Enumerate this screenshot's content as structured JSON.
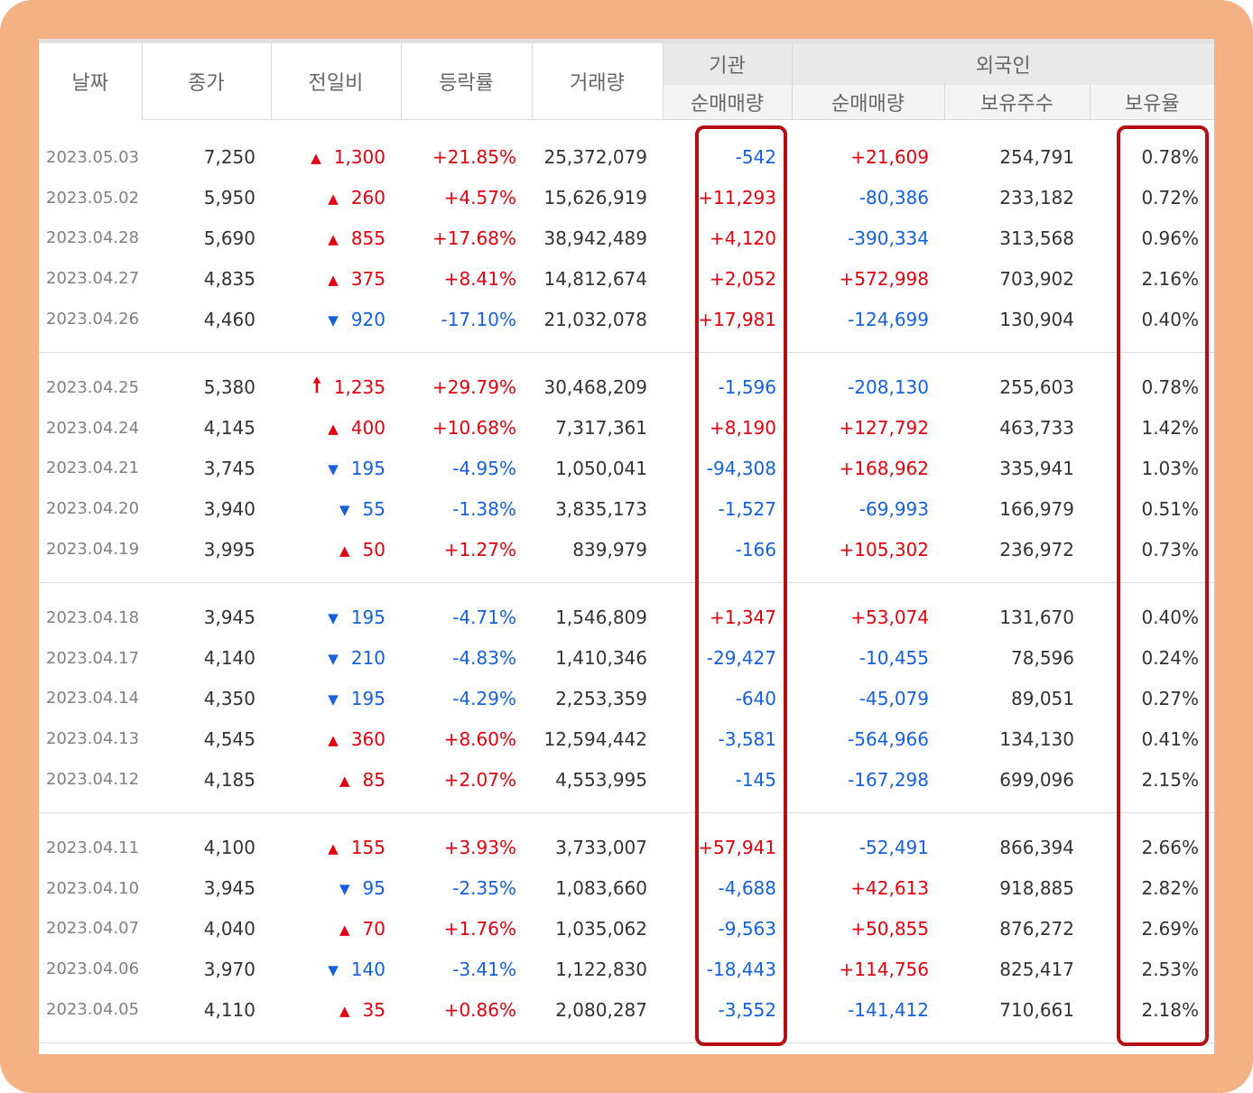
{
  "headers": {
    "date": "날짜",
    "close": "종가",
    "change": "전일비",
    "rate": "등락률",
    "volume": "거래량",
    "inst_group": "기관",
    "inst_net": "순매매량",
    "foreign_group": "외국인",
    "foreign_net": "순매매량",
    "foreign_hold": "보유주수",
    "foreign_ratio": "보유율"
  },
  "arrows": {
    "up": "▲",
    "down": "▼",
    "limit_up": "🠕"
  },
  "colors": {
    "up": "#e0000f",
    "down": "#1660dc",
    "highlight": "#b50e14",
    "frame": "#f4b183"
  },
  "rows": [
    {
      "date": "2023.05.03",
      "close": "7,250",
      "dir": "up",
      "change": "1,300",
      "rate": "+21.85%",
      "volume": "25,372,079",
      "inst": "-542",
      "foreign": "+21,609",
      "hold": "254,791",
      "ratio": "0.78%"
    },
    {
      "date": "2023.05.02",
      "close": "5,950",
      "dir": "up",
      "change": "260",
      "rate": "+4.57%",
      "volume": "15,626,919",
      "inst": "+11,293",
      "foreign": "-80,386",
      "hold": "233,182",
      "ratio": "0.72%"
    },
    {
      "date": "2023.04.28",
      "close": "5,690",
      "dir": "up",
      "change": "855",
      "rate": "+17.68%",
      "volume": "38,942,489",
      "inst": "+4,120",
      "foreign": "-390,334",
      "hold": "313,568",
      "ratio": "0.96%"
    },
    {
      "date": "2023.04.27",
      "close": "4,835",
      "dir": "up",
      "change": "375",
      "rate": "+8.41%",
      "volume": "14,812,674",
      "inst": "+2,052",
      "foreign": "+572,998",
      "hold": "703,902",
      "ratio": "2.16%"
    },
    {
      "date": "2023.04.26",
      "close": "4,460",
      "dir": "down",
      "change": "920",
      "rate": "-17.10%",
      "volume": "21,032,078",
      "inst": "+17,981",
      "foreign": "-124,699",
      "hold": "130,904",
      "ratio": "0.40%"
    },
    {
      "date": "2023.04.25",
      "close": "5,380",
      "dir": "limit_up",
      "change": "1,235",
      "rate": "+29.79%",
      "volume": "30,468,209",
      "inst": "-1,596",
      "foreign": "-208,130",
      "hold": "255,603",
      "ratio": "0.78%"
    },
    {
      "date": "2023.04.24",
      "close": "4,145",
      "dir": "up",
      "change": "400",
      "rate": "+10.68%",
      "volume": "7,317,361",
      "inst": "+8,190",
      "foreign": "+127,792",
      "hold": "463,733",
      "ratio": "1.42%"
    },
    {
      "date": "2023.04.21",
      "close": "3,745",
      "dir": "down",
      "change": "195",
      "rate": "-4.95%",
      "volume": "1,050,041",
      "inst": "-94,308",
      "foreign": "+168,962",
      "hold": "335,941",
      "ratio": "1.03%"
    },
    {
      "date": "2023.04.20",
      "close": "3,940",
      "dir": "down",
      "change": "55",
      "rate": "-1.38%",
      "volume": "3,835,173",
      "inst": "-1,527",
      "foreign": "-69,993",
      "hold": "166,979",
      "ratio": "0.51%"
    },
    {
      "date": "2023.04.19",
      "close": "3,995",
      "dir": "up",
      "change": "50",
      "rate": "+1.27%",
      "volume": "839,979",
      "inst": "-166",
      "foreign": "+105,302",
      "hold": "236,972",
      "ratio": "0.73%"
    },
    {
      "date": "2023.04.18",
      "close": "3,945",
      "dir": "down",
      "change": "195",
      "rate": "-4.71%",
      "volume": "1,546,809",
      "inst": "+1,347",
      "foreign": "+53,074",
      "hold": "131,670",
      "ratio": "0.40%"
    },
    {
      "date": "2023.04.17",
      "close": "4,140",
      "dir": "down",
      "change": "210",
      "rate": "-4.83%",
      "volume": "1,410,346",
      "inst": "-29,427",
      "foreign": "-10,455",
      "hold": "78,596",
      "ratio": "0.24%"
    },
    {
      "date": "2023.04.14",
      "close": "4,350",
      "dir": "down",
      "change": "195",
      "rate": "-4.29%",
      "volume": "2,253,359",
      "inst": "-640",
      "foreign": "-45,079",
      "hold": "89,051",
      "ratio": "0.27%"
    },
    {
      "date": "2023.04.13",
      "close": "4,545",
      "dir": "up",
      "change": "360",
      "rate": "+8.60%",
      "volume": "12,594,442",
      "inst": "-3,581",
      "foreign": "-564,966",
      "hold": "134,130",
      "ratio": "0.41%"
    },
    {
      "date": "2023.04.12",
      "close": "4,185",
      "dir": "up",
      "change": "85",
      "rate": "+2.07%",
      "volume": "4,553,995",
      "inst": "-145",
      "foreign": "-167,298",
      "hold": "699,096",
      "ratio": "2.15%"
    },
    {
      "date": "2023.04.11",
      "close": "4,100",
      "dir": "up",
      "change": "155",
      "rate": "+3.93%",
      "volume": "3,733,007",
      "inst": "+57,941",
      "foreign": "-52,491",
      "hold": "866,394",
      "ratio": "2.66%"
    },
    {
      "date": "2023.04.10",
      "close": "3,945",
      "dir": "down",
      "change": "95",
      "rate": "-2.35%",
      "volume": "1,083,660",
      "inst": "-4,688",
      "foreign": "+42,613",
      "hold": "918,885",
      "ratio": "2.82%"
    },
    {
      "date": "2023.04.07",
      "close": "4,040",
      "dir": "up",
      "change": "70",
      "rate": "+1.76%",
      "volume": "1,035,062",
      "inst": "-9,563",
      "foreign": "+50,855",
      "hold": "876,272",
      "ratio": "2.69%"
    },
    {
      "date": "2023.04.06",
      "close": "3,970",
      "dir": "down",
      "change": "140",
      "rate": "-3.41%",
      "volume": "1,122,830",
      "inst": "-18,443",
      "foreign": "+114,756",
      "hold": "825,417",
      "ratio": "2.53%"
    },
    {
      "date": "2023.04.05",
      "close": "4,110",
      "dir": "up",
      "change": "35",
      "rate": "+0.86%",
      "volume": "2,080,287",
      "inst": "-3,552",
      "foreign": "-141,412",
      "hold": "710,661",
      "ratio": "2.18%"
    }
  ]
}
